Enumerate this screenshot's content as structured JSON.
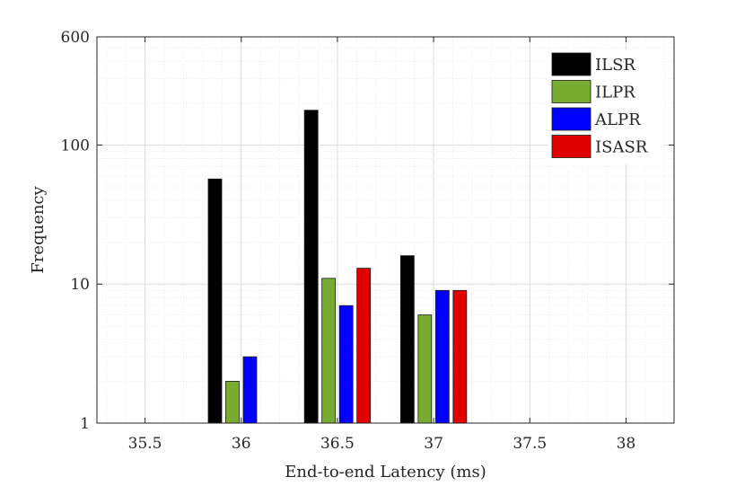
{
  "chart_data": {
    "type": "bar",
    "title": "",
    "xlabel": "End-to-end Latency (ms)",
    "ylabel": "Frequency",
    "yscale": "log",
    "ylim": [
      1,
      600
    ],
    "xlim": [
      35.25,
      38.25
    ],
    "grid": true,
    "minor_grid": true,
    "legend_position": "top-right",
    "x_ticks": [
      35.5,
      36,
      36.5,
      37,
      37.5,
      38
    ],
    "x_tick_labels": [
      "35.5",
      "36",
      "36.5",
      "37",
      "37.5",
      "38"
    ],
    "y_ticks": [
      1,
      10,
      100,
      600
    ],
    "y_tick_labels": [
      "1",
      "10",
      "100",
      "600"
    ],
    "categories": [
      "36",
      "36.5",
      "37"
    ],
    "series": [
      {
        "name": "ILSR",
        "color": "#000000",
        "values": [
          57,
          178,
          16
        ]
      },
      {
        "name": "ILPR",
        "color": "#77AC30",
        "values": [
          2,
          11,
          6
        ]
      },
      {
        "name": "ALPR",
        "color": "#0000FF",
        "values": [
          3,
          7,
          9
        ]
      },
      {
        "name": "ISASR",
        "color": "#E00000",
        "values": [
          null,
          13,
          9
        ]
      }
    ]
  }
}
